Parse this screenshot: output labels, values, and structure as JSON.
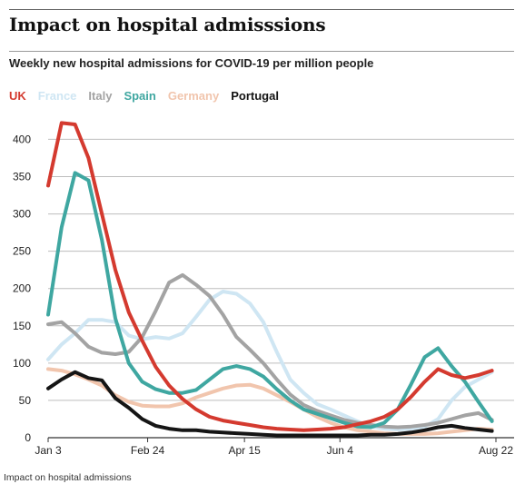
{
  "header": {
    "title": "Impact on hospital admisssions",
    "subtitle": "Weekly new hospital admissions for COVID-19 per million people"
  },
  "caption": "Impact on hospital admissions",
  "chart_data": {
    "type": "line",
    "title": "Impact on hospital admisssions",
    "subtitle": "Weekly new hospital admissions for COVID-19 per million people",
    "xlabel": "",
    "ylabel": "",
    "x_tick_labels": [
      "Jan 3",
      "Feb 24",
      "Apr 15",
      "Jun 4",
      "Aug 22"
    ],
    "x_tick_weeks": [
      0,
      7.4,
      14.6,
      21.7,
      33.3
    ],
    "y_ticks": [
      0,
      50,
      100,
      150,
      200,
      250,
      300,
      350,
      400
    ],
    "ylim": [
      0,
      420
    ],
    "xlim": [
      0,
      33.3
    ],
    "grid": true,
    "legend_position": "top-left",
    "series": [
      {
        "name": "UK",
        "color": "#d43a2f",
        "x": [
          0,
          1,
          2,
          3,
          4,
          5,
          6,
          7,
          8,
          9,
          10,
          11,
          12,
          13,
          14,
          15,
          16,
          17,
          18,
          19,
          20,
          21,
          22,
          23,
          24,
          25,
          26,
          27,
          28,
          29,
          30,
          31,
          32,
          33
        ],
        "values": [
          338,
          422,
          420,
          375,
          300,
          225,
          168,
          130,
          95,
          70,
          52,
          38,
          28,
          23,
          20,
          17,
          14,
          12,
          11,
          10,
          11,
          12,
          14,
          18,
          22,
          28,
          38,
          55,
          75,
          92,
          84,
          80,
          84,
          90
        ]
      },
      {
        "name": "France",
        "color": "#cfe6f3",
        "x": [
          0,
          1,
          2,
          3,
          4,
          5,
          6,
          7,
          8,
          9,
          10,
          11,
          12,
          13,
          14,
          15,
          16,
          17,
          18,
          19,
          20,
          21,
          22,
          23,
          24,
          25,
          26,
          27,
          28,
          29,
          30,
          31,
          32,
          33
        ],
        "values": [
          105,
          125,
          140,
          158,
          158,
          155,
          137,
          132,
          135,
          133,
          140,
          162,
          185,
          196,
          193,
          180,
          155,
          115,
          78,
          60,
          45,
          38,
          30,
          22,
          15,
          12,
          11,
          12,
          15,
          25,
          50,
          68,
          78,
          88
        ]
      },
      {
        "name": "Italy",
        "color": "#a3a3a3",
        "x": [
          0,
          1,
          2,
          3,
          4,
          5,
          6,
          7,
          8,
          9,
          10,
          11,
          12,
          13,
          14,
          15,
          16,
          17,
          18,
          19,
          20,
          21,
          22,
          23,
          24,
          25,
          26,
          27,
          28,
          29,
          30,
          31,
          32,
          33
        ],
        "values": [
          152,
          155,
          140,
          122,
          114,
          112,
          115,
          135,
          170,
          208,
          218,
          205,
          190,
          165,
          135,
          118,
          100,
          78,
          58,
          44,
          36,
          30,
          24,
          20,
          17,
          15,
          14,
          15,
          17,
          20,
          25,
          30,
          33,
          24
        ]
      },
      {
        "name": "Spain",
        "color": "#3fa7a1",
        "x": [
          0,
          1,
          2,
          3,
          4,
          5,
          6,
          7,
          8,
          9,
          10,
          11,
          12,
          13,
          14,
          15,
          16,
          17,
          18,
          19,
          20,
          21,
          22,
          23,
          24,
          25,
          26,
          27,
          28,
          29,
          30,
          31,
          32,
          33
        ],
        "values": [
          165,
          282,
          355,
          345,
          265,
          160,
          100,
          75,
          65,
          60,
          60,
          64,
          78,
          92,
          96,
          92,
          82,
          65,
          50,
          38,
          32,
          26,
          20,
          15,
          14,
          20,
          38,
          72,
          108,
          120,
          96,
          75,
          48,
          22
        ]
      },
      {
        "name": "Germany",
        "color": "#f1c5ad",
        "x": [
          0,
          1,
          2,
          3,
          4,
          5,
          6,
          7,
          8,
          9,
          10,
          11,
          12,
          13,
          14,
          15,
          16,
          17,
          18,
          19,
          20,
          21,
          22,
          23,
          24,
          25,
          26,
          27,
          28,
          29,
          30,
          31,
          32,
          33
        ],
        "values": [
          92,
          90,
          85,
          78,
          70,
          57,
          48,
          43,
          42,
          42,
          46,
          54,
          60,
          66,
          70,
          71,
          66,
          57,
          48,
          38,
          28,
          20,
          14,
          10,
          8,
          6,
          5,
          5,
          5,
          6,
          8,
          10,
          12,
          11
        ]
      },
      {
        "name": "Portugal",
        "color": "#151515",
        "x": [
          0,
          1,
          2,
          3,
          4,
          5,
          6,
          7,
          8,
          9,
          10,
          11,
          12,
          13,
          14,
          15,
          16,
          17,
          18,
          19,
          20,
          21,
          22,
          23,
          24,
          25,
          26,
          27,
          28,
          29,
          30,
          31,
          32,
          33
        ],
        "values": [
          66,
          78,
          88,
          80,
          77,
          53,
          40,
          25,
          16,
          12,
          10,
          10,
          8,
          7,
          6,
          5,
          4,
          3,
          3,
          3,
          3,
          3,
          3,
          3,
          4,
          4,
          5,
          7,
          10,
          14,
          16,
          13,
          11,
          9
        ]
      }
    ]
  }
}
